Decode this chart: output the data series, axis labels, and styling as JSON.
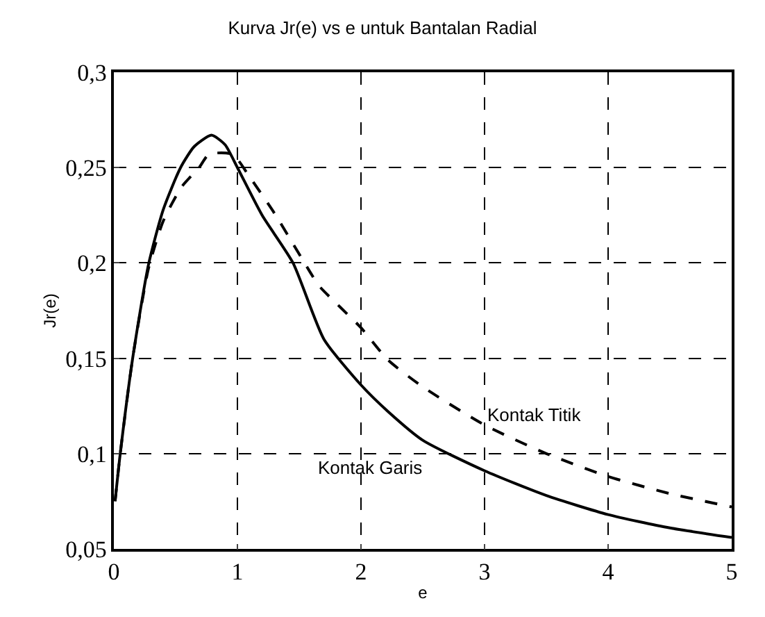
{
  "chart_data": {
    "type": "line",
    "title": "Kurva Jr(e) vs e untuk Bantalan Radial",
    "xlabel": "e",
    "ylabel": "Jr(e)",
    "xlim": [
      0,
      5
    ],
    "xticks": [
      0,
      1,
      2,
      3,
      4,
      5
    ],
    "ylim": [
      0.05,
      0.3
    ],
    "yticks": [
      {
        "value": 0.05,
        "label": "0,05"
      },
      {
        "value": 0.1,
        "label": "0,1"
      },
      {
        "value": 0.15,
        "label": "0,15"
      },
      {
        "value": 0.2,
        "label": "0,2"
      },
      {
        "value": 0.25,
        "label": "0,25"
      },
      {
        "value": 0.3,
        "label": "0,3"
      }
    ],
    "grid": true,
    "legend": false,
    "marker": "none",
    "series": [
      {
        "name": "Kontak Garis",
        "color": "#000000",
        "line_style": "solid",
        "x": [
          0.01,
          0.05,
          0.15,
          0.28,
          0.4,
          0.54,
          0.65,
          0.79,
          0.9,
          1.0,
          1.2,
          1.45,
          1.7,
          2.0,
          2.22,
          2.5,
          3.0,
          3.5,
          4.0,
          4.5,
          5.0
        ],
        "values": [
          0.075,
          0.099,
          0.149,
          0.199,
          0.228,
          0.25,
          0.261,
          0.267,
          0.262,
          0.25,
          0.225,
          0.2,
          0.16,
          0.136,
          0.122,
          0.107,
          0.091,
          0.078,
          0.068,
          0.061,
          0.056
        ]
      },
      {
        "name": "Kontak Titik",
        "color": "#000000",
        "line_style": "dashed",
        "x": [
          0.01,
          0.05,
          0.15,
          0.28,
          0.4,
          0.55,
          0.69,
          0.77,
          0.96,
          1.1,
          1.3,
          1.59,
          1.66,
          2.0,
          2.22,
          2.5,
          3.0,
          3.5,
          4.0,
          4.5,
          5.0
        ],
        "values": [
          0.075,
          0.099,
          0.149,
          0.197,
          0.222,
          0.24,
          0.25,
          0.257,
          0.257,
          0.245,
          0.226,
          0.195,
          0.188,
          0.166,
          0.149,
          0.135,
          0.115,
          0.1,
          0.088,
          0.079,
          0.072
        ]
      }
    ]
  }
}
